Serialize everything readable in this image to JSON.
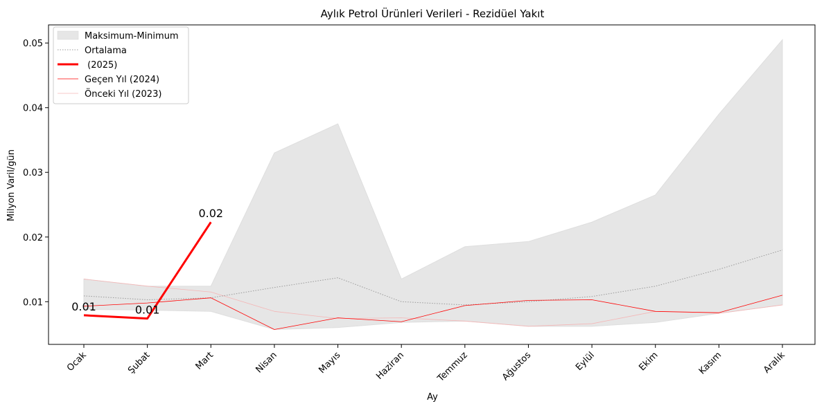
{
  "chart_data": {
    "type": "line",
    "title": "Aylık Petrol Ürünleri Verileri - Rezidüel Yakıt",
    "xlabel": "Ay",
    "ylabel": "Milyon Varil/gün",
    "categories": [
      "Ocak",
      "Şubat",
      "Mart",
      "Nisan",
      "Mayıs",
      "Haziran",
      "Temmuz",
      "Ağustos",
      "Eylül",
      "Ekim",
      "Kasım",
      "Aralık"
    ],
    "ylim": [
      0.0034,
      0.0528
    ],
    "yticks": [
      0.01,
      0.02,
      0.03,
      0.04,
      0.05
    ],
    "ytick_labels": [
      "0.01",
      "0.02",
      "0.03",
      "0.04",
      "0.05"
    ],
    "legend_position": "top-left",
    "grid": false,
    "band": {
      "name": "Maksimum-Minimum",
      "color": "#e6e6e6",
      "max": [
        0.0135,
        0.0124,
        0.0124,
        0.033,
        0.0375,
        0.0135,
        0.0185,
        0.0193,
        0.0223,
        0.0265,
        0.039,
        0.0505
      ],
      "min": [
        0.0088,
        0.0087,
        0.0085,
        0.0057,
        0.006,
        0.0068,
        0.007,
        0.0062,
        0.0062,
        0.0068,
        0.0082,
        0.0095
      ]
    },
    "series": [
      {
        "name": "Ortalama",
        "style": "dotted",
        "color": "#999999",
        "width": 1,
        "values": [
          0.0109,
          0.0103,
          0.0106,
          0.0122,
          0.0137,
          0.01,
          0.0095,
          0.01,
          0.0108,
          0.0124,
          0.015,
          0.018
        ]
      },
      {
        "name": " (2025)",
        "style": "solid",
        "color": "#ff0000",
        "width": 3,
        "values": [
          0.0079,
          0.0074,
          0.0223,
          null,
          null,
          null,
          null,
          null,
          null,
          null,
          null,
          null
        ],
        "data_labels": [
          "0.01",
          "0.01",
          "0.02"
        ]
      },
      {
        "name": "Geçen Yıl (2024)",
        "style": "solid",
        "color": "#ff0000",
        "width": 0.8,
        "values": [
          0.0093,
          0.0098,
          0.0106,
          0.0057,
          0.0075,
          0.0069,
          0.0094,
          0.0102,
          0.0103,
          0.0085,
          0.0083,
          0.011
        ]
      },
      {
        "name": "Önceki Yıl (2023)",
        "style": "solid",
        "color": "#f4b6b6",
        "width": 0.8,
        "values": [
          0.0135,
          0.0124,
          0.0115,
          0.0085,
          0.0074,
          0.0075,
          0.007,
          0.0062,
          0.0066,
          0.0085,
          0.0082,
          0.0095
        ]
      }
    ]
  }
}
